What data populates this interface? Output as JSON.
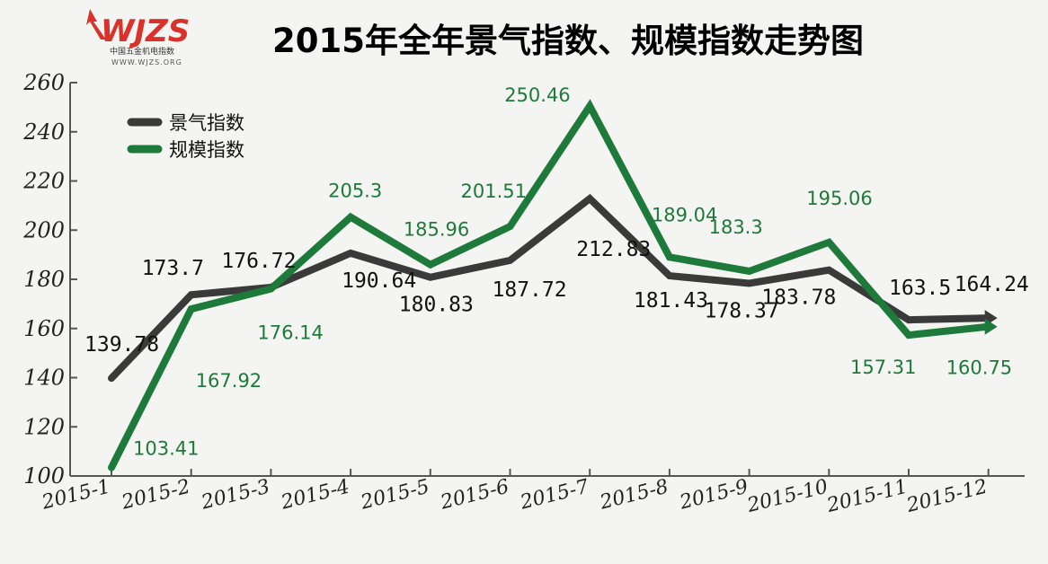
{
  "logo": {
    "brand": "WJZS",
    "subtitle": "中国五金机电指数",
    "url": "WWW.WJZS.ORG"
  },
  "colors": {
    "series_black": "#3a3a3a",
    "series_green": "#1e7a3a",
    "label_green": "#1e7a3a",
    "logo_red": "#d8322b"
  },
  "chart_data": {
    "type": "line",
    "title": "2015年全年景气指数、规模指数走势图",
    "categories": [
      "2015-1",
      "2015-2",
      "2015-3",
      "2015-4",
      "2015-5",
      "2015-6",
      "2015-7",
      "2015-8",
      "2015-9",
      "2015-10",
      "2015-11",
      "2015-12"
    ],
    "ylim": [
      100,
      260
    ],
    "yticks": [
      100,
      120,
      140,
      160,
      180,
      200,
      220,
      240,
      260
    ],
    "grid": false,
    "legend_position": "top-left",
    "series": [
      {
        "name": "景气指数",
        "color": "#3a3a3a",
        "values": [
          139.78,
          173.7,
          176.72,
          190.64,
          180.83,
          187.72,
          212.83,
          181.43,
          178.37,
          183.78,
          163.5,
          164.24
        ],
        "labels": [
          "139.78",
          "173.7",
          "176.72",
          "190.64",
          "180.83",
          "187.72",
          "212.83",
          "181.43",
          "178.37",
          "183.78",
          "163.5",
          "164.24"
        ]
      },
      {
        "name": "规模指数",
        "color": "#1e7a3a",
        "values": [
          103.41,
          167.92,
          176.14,
          205.3,
          185.96,
          201.51,
          250.46,
          189.04,
          183.3,
          195.06,
          157.31,
          160.75
        ],
        "labels": [
          "103.41",
          "167.92",
          "176.14",
          "205.3",
          "185.96",
          "201.51",
          "250.46",
          "189.04",
          "183.3",
          "195.06",
          "157.31",
          "160.75"
        ]
      }
    ]
  }
}
